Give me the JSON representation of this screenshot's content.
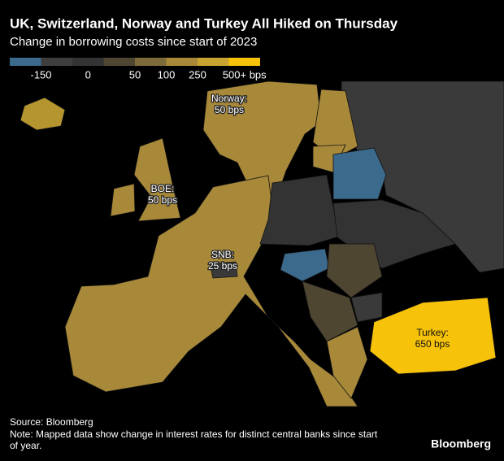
{
  "header": {
    "title": "UK, Switzerland, Norway and Turkey All Hiked on Thursday",
    "subtitle": "Change in borrowing costs since start of 2023"
  },
  "legend": {
    "colors": [
      "#3c6a8c",
      "#3e3e3e",
      "#333333",
      "#4f4632",
      "#7e6b3a",
      "#a8893a",
      "#c9a431",
      "#f7c20a"
    ],
    "labels": [
      "-150",
      "0",
      "50",
      "100",
      "250",
      "500+ bps"
    ]
  },
  "annotations": [
    {
      "lines": [
        "Norway:",
        "50 bps"
      ]
    },
    {
      "lines": [
        "BOE:",
        "50 bps"
      ]
    },
    {
      "lines": [
        "SNB:",
        "25 bps"
      ]
    },
    {
      "lines": [
        "Turkey:",
        "650 bps"
      ]
    }
  ],
  "footer": {
    "source": "Source: Bloomberg",
    "note": [
      "Note: Mapped data show change in interest rates for distinct central banks since start",
      "of year."
    ],
    "brand": "Bloomberg"
  }
}
